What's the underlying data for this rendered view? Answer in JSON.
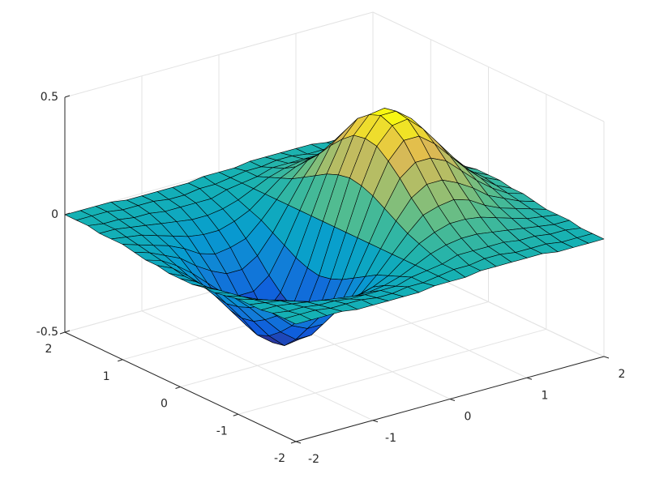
{
  "chart_data": {
    "type": "surface",
    "colormap": "parula",
    "grid": true,
    "x": [
      -2,
      -1.8,
      -1.6,
      -1.4,
      -1.2,
      -1,
      -0.8,
      -0.6,
      -0.4,
      -0.2,
      0,
      0.2,
      0.4,
      0.6,
      0.8,
      1,
      1.2,
      1.4,
      1.6,
      1.8,
      2
    ],
    "y": [
      -2,
      -1.8,
      -1.6,
      -1.4,
      -1.2,
      -1,
      -0.8,
      -0.6,
      -0.4,
      -0.2,
      0,
      0.2,
      0.4,
      0.6,
      0.8,
      1,
      1.2,
      1.4,
      1.6,
      1.8,
      2
    ],
    "z": [
      [
        0,
        0,
        0,
        0,
        -0.01,
        -0.01,
        -0.01,
        -0.01,
        -0.01,
        0,
        0,
        0,
        0.01,
        0.01,
        0.01,
        0.01,
        0.01,
        0,
        0,
        0,
        0
      ],
      [
        0,
        0,
        0,
        -0.01,
        -0.01,
        -0.01,
        -0.02,
        -0.02,
        -0.01,
        -0.01,
        0,
        0.01,
        0.01,
        0.02,
        0.02,
        0.01,
        0.01,
        0.01,
        0,
        0,
        0
      ],
      [
        0,
        -0.01,
        -0.01,
        -0.02,
        -0.02,
        -0.03,
        -0.03,
        -0.03,
        -0.03,
        -0.01,
        0,
        0.01,
        0.03,
        0.03,
        0.03,
        0.03,
        0.02,
        0.02,
        0.01,
        0.01,
        0
      ],
      [
        -0.01,
        -0.01,
        -0.02,
        -0.03,
        -0.04,
        -0.05,
        -0.06,
        -0.06,
        -0.05,
        -0.03,
        0,
        0.03,
        0.05,
        0.06,
        0.06,
        0.05,
        0.04,
        0.03,
        0.02,
        0.01,
        0.01
      ],
      [
        -0.01,
        -0.02,
        -0.03,
        -0.05,
        -0.07,
        -0.09,
        -0.1,
        -0.1,
        -0.08,
        -0.05,
        0,
        0.05,
        0.08,
        0.1,
        0.1,
        0.09,
        0.07,
        0.05,
        0.03,
        0.02,
        0.01
      ],
      [
        -0.01,
        -0.03,
        -0.05,
        -0.07,
        -0.1,
        -0.14,
        -0.16,
        -0.15,
        -0.13,
        -0.07,
        0,
        0.07,
        0.13,
        0.15,
        0.16,
        0.14,
        0.1,
        0.07,
        0.05,
        0.03,
        0.01
      ],
      [
        -0.02,
        -0.04,
        -0.07,
        -0.1,
        -0.15,
        -0.19,
        -0.22,
        -0.22,
        -0.18,
        -0.1,
        0,
        0.1,
        0.18,
        0.22,
        0.22,
        0.19,
        0.15,
        0.1,
        0.07,
        0.04,
        0.02
      ],
      [
        -0.03,
        -0.05,
        -0.09,
        -0.14,
        -0.2,
        -0.26,
        -0.29,
        -0.29,
        -0.24,
        -0.13,
        0,
        0.13,
        0.24,
        0.29,
        0.29,
        0.26,
        0.2,
        0.14,
        0.09,
        0.05,
        0.03
      ],
      [
        -0.03,
        -0.06,
        -0.11,
        -0.17,
        -0.24,
        -0.31,
        -0.36,
        -0.36,
        -0.29,
        -0.16,
        0,
        0.16,
        0.29,
        0.36,
        0.36,
        0.31,
        0.24,
        0.17,
        0.11,
        0.06,
        0.03
      ],
      [
        -0.04,
        -0.07,
        -0.12,
        -0.19,
        -0.27,
        -0.35,
        -0.41,
        -0.4,
        -0.33,
        -0.18,
        0,
        0.18,
        0.33,
        0.4,
        0.41,
        0.35,
        0.27,
        0.19,
        0.12,
        0.07,
        0.04
      ],
      [
        -0.04,
        -0.07,
        -0.12,
        -0.2,
        -0.28,
        -0.37,
        -0.42,
        -0.42,
        -0.34,
        -0.19,
        0,
        0.19,
        0.34,
        0.42,
        0.42,
        0.37,
        0.28,
        0.2,
        0.12,
        0.07,
        0.04
      ],
      [
        -0.04,
        -0.07,
        -0.12,
        -0.19,
        -0.27,
        -0.35,
        -0.41,
        -0.4,
        -0.33,
        -0.18,
        0,
        0.18,
        0.33,
        0.4,
        0.41,
        0.35,
        0.27,
        0.19,
        0.12,
        0.07,
        0.04
      ],
      [
        -0.03,
        -0.06,
        -0.11,
        -0.17,
        -0.24,
        -0.31,
        -0.36,
        -0.36,
        -0.29,
        -0.16,
        0,
        0.16,
        0.29,
        0.36,
        0.36,
        0.31,
        0.24,
        0.17,
        0.11,
        0.06,
        0.03
      ],
      [
        -0.03,
        -0.05,
        -0.09,
        -0.14,
        -0.2,
        -0.26,
        -0.29,
        -0.29,
        -0.24,
        -0.13,
        0,
        0.13,
        0.24,
        0.29,
        0.29,
        0.26,
        0.2,
        0.14,
        0.09,
        0.05,
        0.03
      ],
      [
        -0.02,
        -0.04,
        -0.07,
        -0.1,
        -0.15,
        -0.19,
        -0.22,
        -0.22,
        -0.18,
        -0.1,
        0,
        0.1,
        0.18,
        0.22,
        0.22,
        0.19,
        0.15,
        0.1,
        0.07,
        0.04,
        0.02
      ],
      [
        -0.01,
        -0.03,
        -0.05,
        -0.07,
        -0.1,
        -0.14,
        -0.16,
        -0.15,
        -0.13,
        -0.07,
        0,
        0.07,
        0.13,
        0.15,
        0.16,
        0.14,
        0.1,
        0.07,
        0.05,
        0.03,
        0.01
      ],
      [
        -0.01,
        -0.02,
        -0.03,
        -0.05,
        -0.07,
        -0.09,
        -0.1,
        -0.1,
        -0.08,
        -0.05,
        0,
        0.05,
        0.08,
        0.1,
        0.1,
        0.09,
        0.07,
        0.05,
        0.03,
        0.02,
        0.01
      ],
      [
        -0.01,
        -0.01,
        -0.02,
        -0.03,
        -0.04,
        -0.05,
        -0.06,
        -0.06,
        -0.05,
        -0.03,
        0,
        0.03,
        0.05,
        0.06,
        0.06,
        0.05,
        0.04,
        0.03,
        0.02,
        0.01,
        0.01
      ],
      [
        0,
        -0.01,
        -0.01,
        -0.02,
        -0.02,
        -0.03,
        -0.03,
        -0.03,
        -0.03,
        -0.01,
        0,
        0.01,
        0.03,
        0.03,
        0.03,
        0.03,
        0.02,
        0.02,
        0.01,
        0.01,
        0
      ],
      [
        0,
        0,
        0,
        -0.01,
        -0.01,
        -0.01,
        -0.02,
        -0.02,
        -0.01,
        -0.01,
        0,
        0.01,
        0.01,
        0.02,
        0.02,
        0.01,
        0.01,
        0.01,
        0,
        0,
        0
      ],
      [
        0,
        0,
        0,
        0,
        -0.01,
        -0.01,
        -0.01,
        -0.01,
        -0.01,
        0,
        0,
        0,
        0.01,
        0.01,
        0.01,
        0.01,
        0.01,
        0,
        0,
        0,
        0
      ]
    ],
    "xlim": [
      -2,
      2
    ],
    "ylim": [
      -2,
      2
    ],
    "zlim": [
      -0.5,
      0.5
    ],
    "xticks": [
      -2,
      -1,
      0,
      1,
      2
    ],
    "yticks": [
      -2,
      -1,
      0,
      1,
      2
    ],
    "zticks": [
      -0.5,
      0,
      0.5
    ]
  }
}
